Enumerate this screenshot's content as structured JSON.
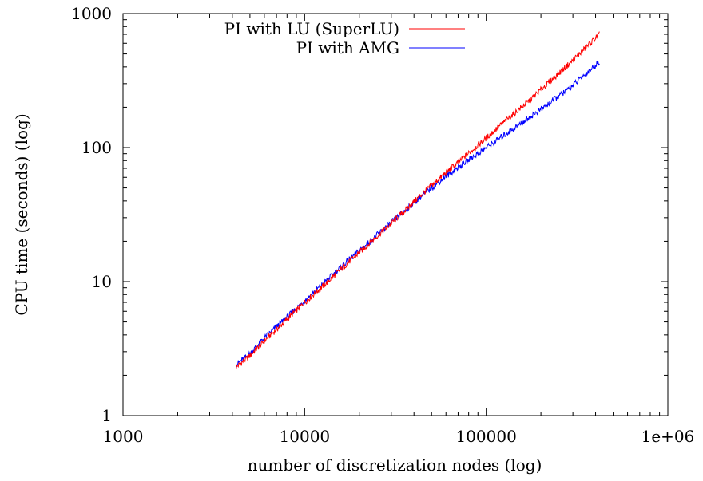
{
  "chart_data": {
    "type": "line",
    "title": "",
    "xlabel": "number of discretization nodes (log)",
    "ylabel": "CPU time (seconds) (log)",
    "x_scale": "log",
    "y_scale": "log",
    "xlim": [
      1000,
      1000000
    ],
    "ylim": [
      1,
      1000
    ],
    "x_ticks": [
      1000,
      10000,
      100000,
      1000000
    ],
    "x_tick_labels": [
      "1000",
      "10000",
      "100000",
      "1e+06"
    ],
    "y_ticks": [
      1,
      10,
      100,
      1000
    ],
    "y_tick_labels": [
      "1",
      "10",
      "100",
      "1000"
    ],
    "grid": false,
    "legend_position": "top-right",
    "series": [
      {
        "name": "PI with LU (SuperLU)",
        "color": "#ff0000",
        "x": [
          4200,
          5000,
          6000,
          7500,
          10000,
          13000,
          17000,
          22000,
          28000,
          35000,
          42000,
          50000,
          60000,
          75000,
          100000,
          130000,
          170000,
          220000,
          280000,
          350000,
          420000
        ],
        "y": [
          2.3,
          2.8,
          3.6,
          4.8,
          7.0,
          9.6,
          13.5,
          18.5,
          25,
          33,
          42,
          52,
          65,
          84,
          118,
          162,
          220,
          305,
          410,
          550,
          700
        ]
      },
      {
        "name": "PI with AMG",
        "color": "#0000ff",
        "x": [
          4200,
          5000,
          6000,
          7500,
          10000,
          13000,
          17000,
          22000,
          28000,
          35000,
          42000,
          50000,
          60000,
          75000,
          100000,
          130000,
          170000,
          220000,
          280000,
          350000,
          420000
        ],
        "y": [
          2.4,
          2.9,
          3.8,
          5.0,
          7.2,
          10.0,
          14.0,
          19,
          25.5,
          33,
          41,
          50,
          61,
          76,
          100,
          128,
          165,
          212,
          270,
          350,
          440
        ]
      }
    ]
  }
}
